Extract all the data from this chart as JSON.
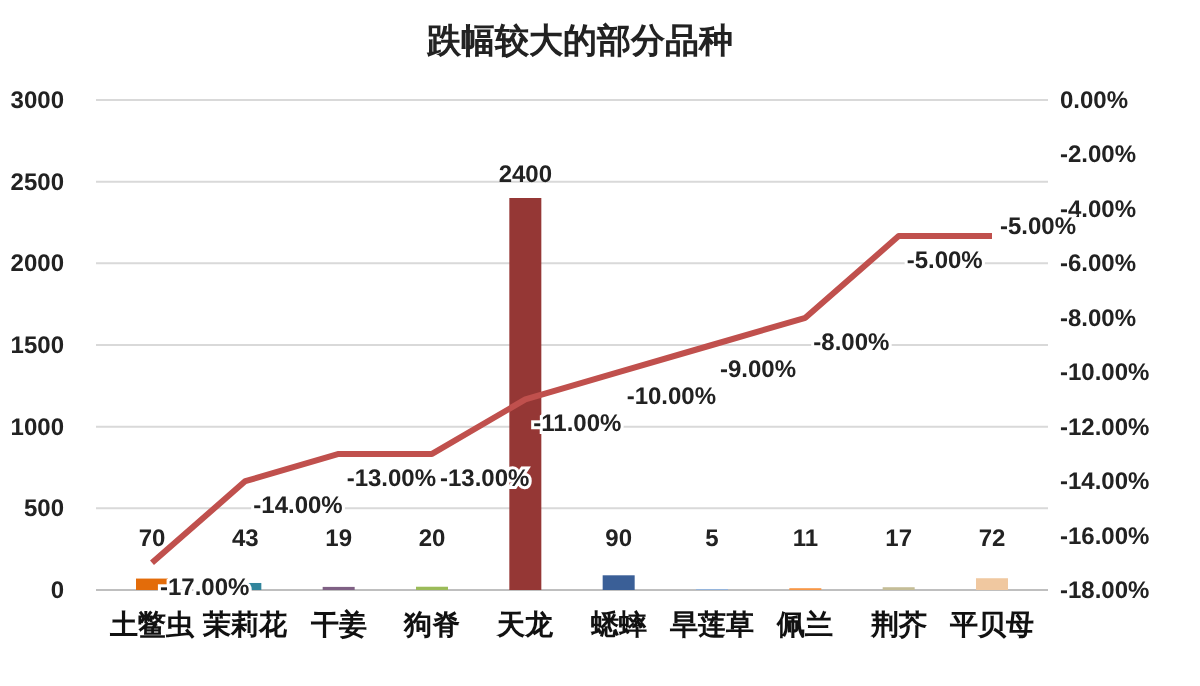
{
  "chart_data": {
    "type": "bar",
    "title": "跌幅较大的部分品种",
    "categories": [
      "土鳖虫",
      "茉莉花",
      "干姜",
      "狗脊",
      "天龙",
      "蟋蟀",
      "旱莲草",
      "佩兰",
      "荆芥",
      "平贝母"
    ],
    "series": [
      {
        "colors": [
          "#e36c0a",
          "#31859c",
          "#7f6084",
          "#9bbb59",
          "#953735",
          "#3a5f97",
          "#8db3e2",
          "#f79646",
          "#c4bd97",
          "#f0c8a0"
        ],
        "values": [
          70,
          43,
          19,
          20,
          2400,
          90,
          5,
          11,
          17,
          72
        ],
        "data_labels": true
      },
      {
        "type": "line",
        "axis": "y2",
        "color": "#c0504d",
        "values": [
          -17,
          -14,
          -13,
          -13,
          -11,
          -10,
          -9,
          -8,
          -5,
          -5
        ],
        "value_labels": [
          "-17.00%",
          "-14.00%",
          "-13.00%",
          "-13.00%",
          "-11.00%",
          "-10.00%",
          "-9.00%",
          "-8.00%",
          "-5.00%",
          "-5.00%"
        ]
      }
    ],
    "ylim": [
      0,
      3000
    ],
    "yticks": [
      0,
      500,
      1000,
      1500,
      2000,
      2500,
      3000
    ],
    "y2lim": [
      -18,
      0
    ],
    "y2ticks": [
      {
        "value": -18,
        "label": "-18.00%"
      },
      {
        "value": -16,
        "label": "-16.00%"
      },
      {
        "value": -14,
        "label": "-14.00%"
      },
      {
        "value": -12,
        "label": "-12.00%"
      },
      {
        "value": -10,
        "label": "-10.00%"
      },
      {
        "value": -8,
        "label": "-8.00%"
      },
      {
        "value": -6,
        "label": "-6.00%"
      },
      {
        "value": -4,
        "label": "-4.00%"
      },
      {
        "value": -2,
        "label": "-2.00%"
      },
      {
        "value": 0,
        "label": "0.00%"
      }
    ],
    "grid": "y",
    "marker": "none",
    "line_style": "solid"
  }
}
